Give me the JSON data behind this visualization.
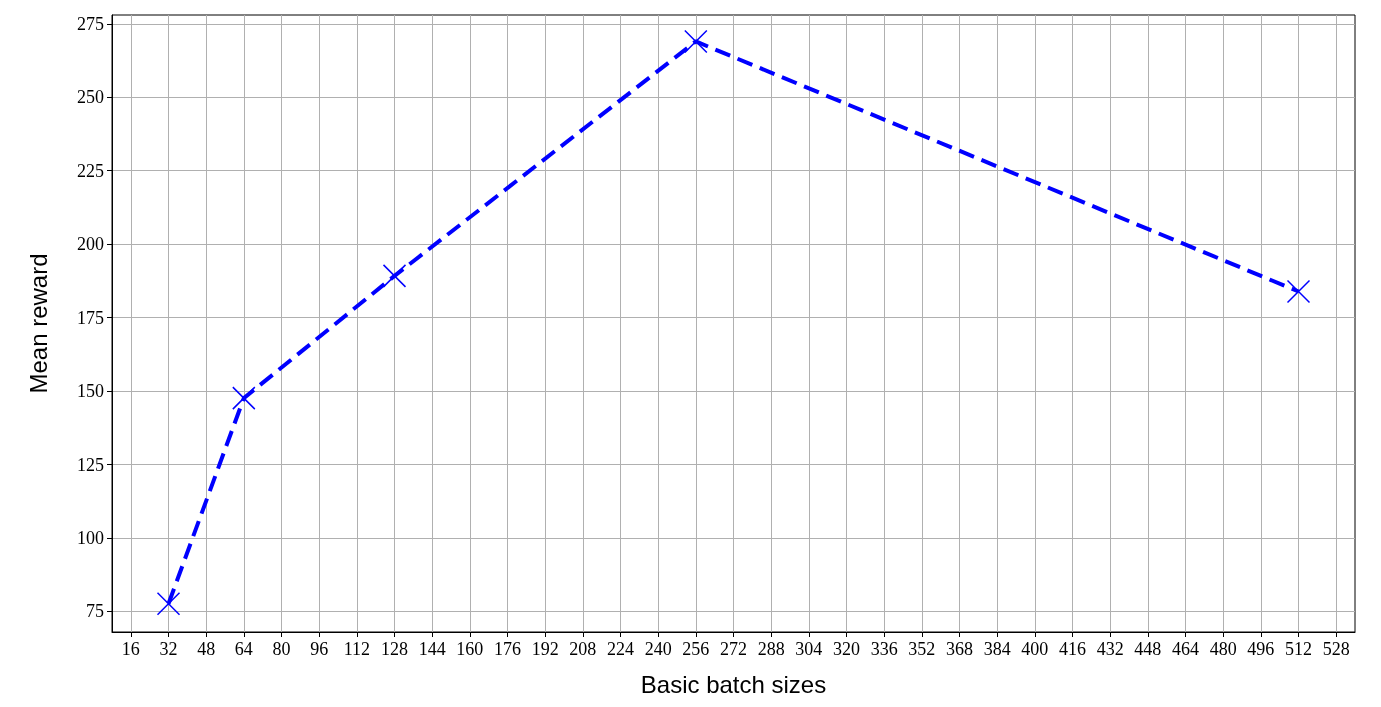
{
  "chart_data": {
    "type": "line",
    "xlabel": "Basic batch sizes",
    "ylabel": "Mean reward",
    "x": [
      32,
      64,
      128,
      256,
      512
    ],
    "series": [
      {
        "color": "#0000ff",
        "values": [
          77.6,
          147.6,
          189.2,
          269,
          183.9
        ]
      }
    ],
    "xlim": [
      8,
      536
    ],
    "xticks": [
      16,
      32,
      48,
      64,
      80,
      96,
      112,
      128,
      144,
      160,
      176,
      192,
      208,
      224,
      240,
      256,
      272,
      288,
      304,
      320,
      336,
      352,
      368,
      384,
      400,
      416,
      432,
      448,
      464,
      480,
      496,
      512,
      528
    ],
    "ylim": [
      68,
      278
    ],
    "yticks": [
      75,
      100,
      125,
      150,
      175,
      200,
      225,
      250,
      275
    ],
    "grid": true,
    "marker": "cross",
    "line_style": "dashed"
  }
}
